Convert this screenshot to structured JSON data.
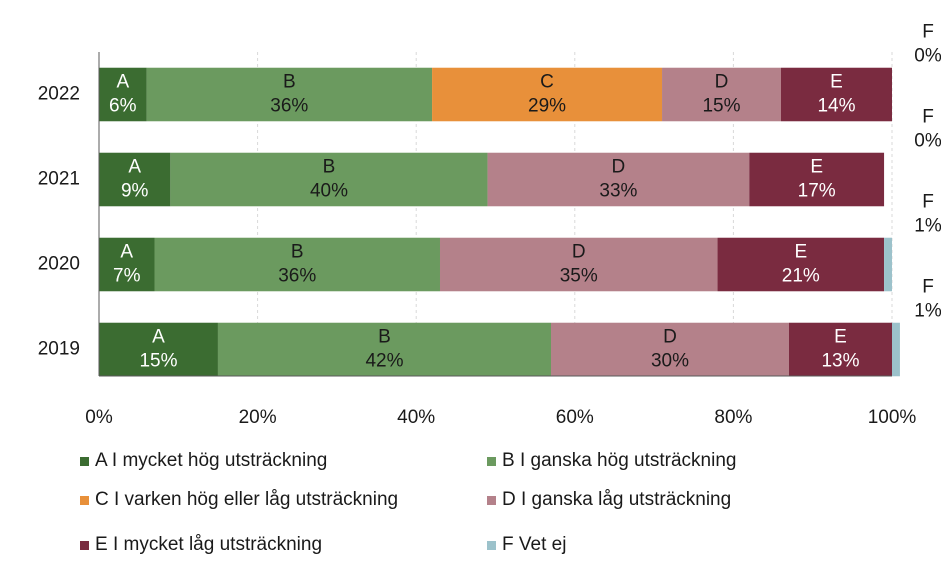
{
  "chart_data": {
    "type": "stacked_barh",
    "categories": [
      "2022",
      "2021",
      "2020",
      "2019"
    ],
    "series": [
      {
        "name": "A I mycket hög utsträckning",
        "short": "A",
        "color": "#3b6c31",
        "label_color": "#ffffff",
        "values": [
          6,
          9,
          7,
          15
        ],
        "value_labels": [
          "6%",
          "9%",
          "7%",
          "15%"
        ]
      },
      {
        "name": "B I ganska hög utsträckning",
        "short": "B",
        "color": "#6b9a5f",
        "label_color": "#1a1a1a",
        "values": [
          36,
          40,
          36,
          42
        ],
        "value_labels": [
          "36%",
          "40%",
          "36%",
          "42%"
        ]
      },
      {
        "name": "C I varken hög eller låg utsträckning",
        "short": "C",
        "color": "#e8903a",
        "label_color": "#1a1a1a",
        "values": [
          29,
          null,
          null,
          null
        ],
        "value_labels": [
          "29%",
          null,
          null,
          null
        ]
      },
      {
        "name": "D I ganska låg utsträckning",
        "short": "D",
        "color": "#b4818a",
        "label_color": "#1a1a1a",
        "values": [
          15,
          33,
          35,
          30
        ],
        "value_labels": [
          "15%",
          "33%",
          "35%",
          "30%"
        ]
      },
      {
        "name": "E I mycket låg utsträckning",
        "short": "E",
        "color": "#7a2b40",
        "label_color": "#ffffff",
        "values": [
          14,
          17,
          21,
          13
        ],
        "value_labels": [
          "14%",
          "17%",
          "21%",
          "13%"
        ]
      },
      {
        "name": "F Vet ej",
        "short": "F",
        "color": "#9cc2cb",
        "label_color": "#1a1a1a",
        "outside": true,
        "values": [
          0,
          0,
          1,
          1
        ],
        "value_labels": [
          "0%",
          "0%",
          "1%",
          "1%"
        ]
      }
    ],
    "xlim": [
      0,
      100
    ],
    "xticks": [
      {
        "value": 0,
        "label": "0%"
      },
      {
        "value": 20,
        "label": "20%"
      },
      {
        "value": 40,
        "label": "40%"
      },
      {
        "value": 60,
        "label": "60%"
      },
      {
        "value": 80,
        "label": "80%"
      },
      {
        "value": 100,
        "label": "100%"
      }
    ],
    "grid": true
  }
}
